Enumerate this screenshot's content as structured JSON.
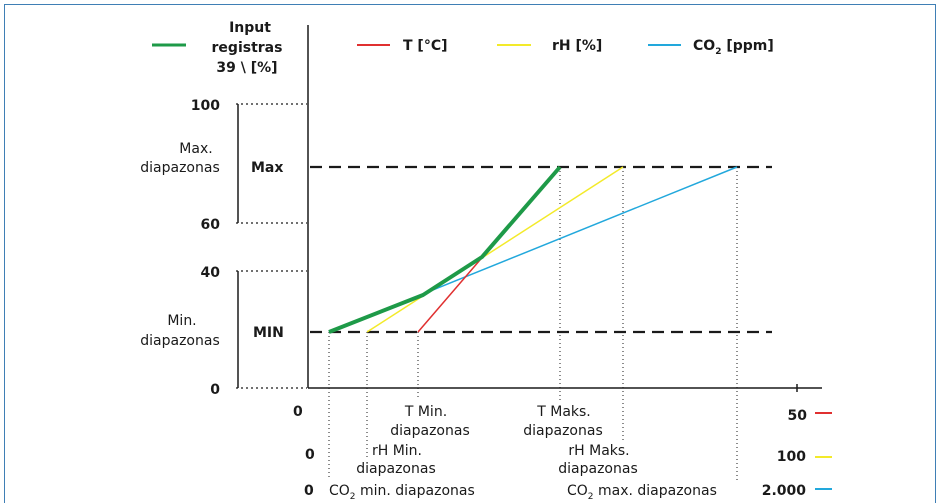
{
  "legend": {
    "input_label": [
      "Input",
      "registras",
      "39 \\ [%]"
    ],
    "t_label": "T [°C]",
    "rh_label": "rH [%]",
    "co2_label_main": "CO",
    "co2_label_sub": "2",
    "co2_label_unit": " [ppm]"
  },
  "yaxis": {
    "tick_100": "100",
    "tick_60": "60",
    "tick_40": "40",
    "tick_0": "0",
    "max_range_label": [
      "Max.",
      "diapazonas"
    ],
    "min_range_label": [
      "Min.",
      "diapazonas"
    ],
    "max_label": "Max",
    "min_label": "MIN"
  },
  "xaxis": {
    "t_start": "0",
    "t_end": "50",
    "rh_start": "0",
    "rh_end": "100",
    "co2_start": "0",
    "co2_end": "2.000",
    "t_min": [
      "T Min.",
      "diapazonas"
    ],
    "t_max": [
      "T Maks.",
      "diapazonas"
    ],
    "rh_min": [
      "rH Min.",
      "diapazonas"
    ],
    "rh_max": [
      "rH Maks.",
      "diapazonas"
    ],
    "co2_min_main": "CO",
    "co2_min_sub": "2",
    "co2_min_rest": " min. diapazonas",
    "co2_max_main": "CO",
    "co2_max_sub": "2",
    "co2_max_rest": " max. diapazonas"
  },
  "colors": {
    "input": "#1e9a48",
    "t": "#e03030",
    "rh": "#f3ea2a",
    "co2": "#22a8dc",
    "dashed": "#1a1a1a",
    "frame": "#3f7fb5"
  }
}
